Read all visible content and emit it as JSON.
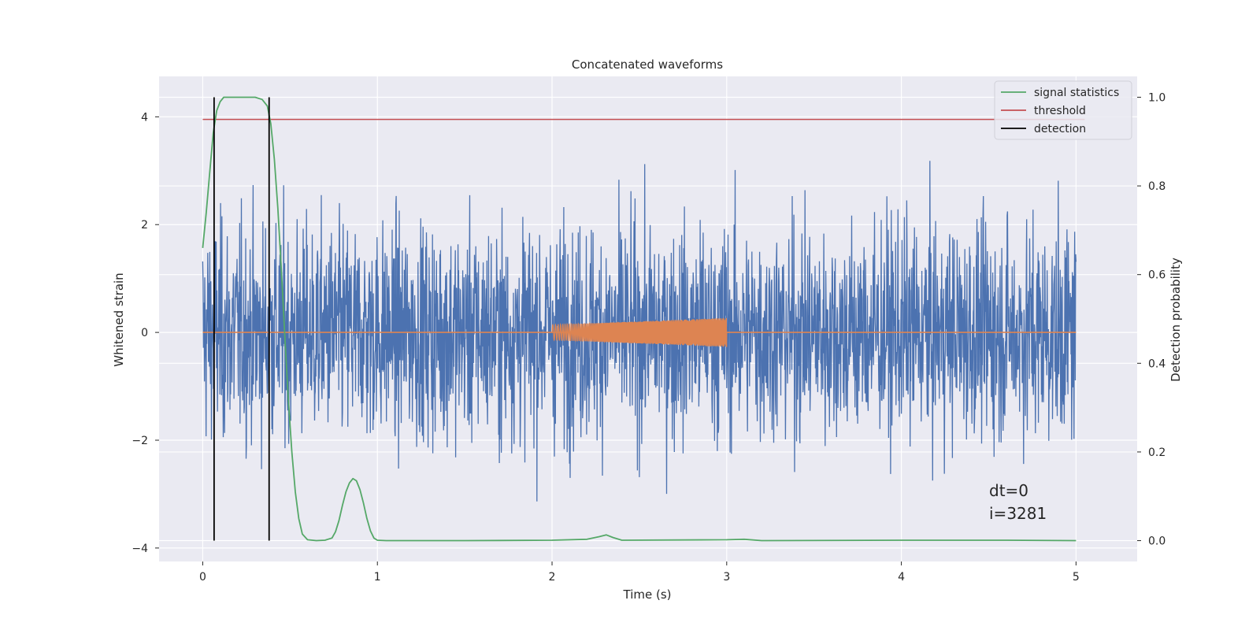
{
  "chart_data": {
    "type": "line",
    "title": "Concatenated waveforms",
    "xlabel": "Time (s)",
    "ylabel_left": "Whitened strain",
    "ylabel_right": "Detection probability",
    "xlim": [
      -0.25,
      5.35
    ],
    "ylim_left": [
      -4.25,
      4.75
    ],
    "ylim_right": [
      -0.047,
      1.047
    ],
    "x_ticks": [
      0,
      1,
      2,
      3,
      4,
      5
    ],
    "x_tick_labels": [
      "0",
      "1",
      "2",
      "3",
      "4",
      "5"
    ],
    "y_left_ticks": [
      -4,
      -2,
      0,
      2,
      4
    ],
    "y_left_tick_labels": [
      "−4",
      "−2",
      "0",
      "2",
      "4"
    ],
    "y_right_ticks": [
      0.0,
      0.2,
      0.4,
      0.6,
      0.8,
      1.0
    ],
    "y_right_tick_labels": [
      "0.0",
      "0.2",
      "0.4",
      "0.6",
      "0.8",
      "1.0"
    ],
    "grid": true,
    "legend_position": "top-right",
    "legend": [
      {
        "label": "signal statistics",
        "color": "#55a868"
      },
      {
        "label": "threshold",
        "color": "#c44e52"
      },
      {
        "label": "detection",
        "color": "#000000"
      }
    ],
    "series": [
      {
        "role": "noise",
        "axis": "left",
        "color": "#4c72b0",
        "x_range": [
          0,
          5
        ],
        "typical_amplitude": 1.0,
        "peak_range": [
          -3.6,
          4.4
        ]
      },
      {
        "role": "injected-chirp",
        "axis": "left",
        "color": "#dd8452",
        "x_range": [
          2,
          3
        ],
        "amplitude_start": 0.14,
        "amplitude_end": 0.27,
        "baseline_x_range": [
          0,
          5
        ],
        "baseline_y": 0
      },
      {
        "name": "signal statistics",
        "axis": "right",
        "color": "#55a868",
        "x": [
          0,
          0.02,
          0.04,
          0.06,
          0.08,
          0.1,
          0.12,
          0.15,
          0.2,
          0.25,
          0.3,
          0.34,
          0.37,
          0.39,
          0.41,
          0.43,
          0.45,
          0.47,
          0.49,
          0.51,
          0.53,
          0.55,
          0.57,
          0.6,
          0.65,
          0.7,
          0.74,
          0.76,
          0.78,
          0.8,
          0.82,
          0.84,
          0.86,
          0.88,
          0.9,
          0.92,
          0.94,
          0.96,
          0.98,
          1.0,
          1.05,
          1.5,
          2.0,
          2.2,
          2.27,
          2.31,
          2.35,
          2.4,
          3.0,
          3.1,
          3.2,
          4.0,
          4.6,
          5.0
        ],
        "y": [
          0.66,
          0.74,
          0.83,
          0.92,
          0.97,
          0.99,
          1.0,
          1.0,
          1.0,
          1.0,
          1.0,
          0.995,
          0.98,
          0.94,
          0.86,
          0.75,
          0.61,
          0.46,
          0.32,
          0.2,
          0.11,
          0.05,
          0.015,
          0.002,
          0.0,
          0.001,
          0.006,
          0.02,
          0.045,
          0.08,
          0.11,
          0.13,
          0.14,
          0.135,
          0.115,
          0.085,
          0.05,
          0.022,
          0.006,
          0.001,
          0.0,
          0.0,
          0.001,
          0.003,
          0.009,
          0.013,
          0.007,
          0.001,
          0.002,
          0.003,
          0.0,
          0.001,
          0.001,
          0.0
        ]
      },
      {
        "name": "threshold",
        "axis": "right",
        "color": "#c44e52",
        "x": [
          0,
          5.05
        ],
        "y": [
          0.95,
          0.95
        ]
      },
      {
        "name": "detection",
        "axis": "right",
        "color": "#000000",
        "vlines_x": [
          0.065,
          0.38
        ],
        "y_range": [
          0.0,
          1.0
        ]
      }
    ],
    "annotations": [
      "dt=0",
      "i=3281"
    ]
  }
}
